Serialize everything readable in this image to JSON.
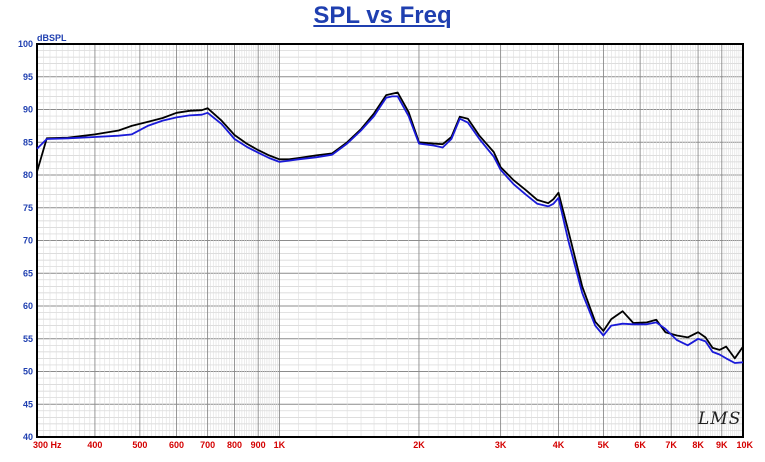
{
  "title": "SPL vs Freq",
  "watermark": "LMS",
  "chart_data": {
    "type": "line",
    "title": "SPL vs Freq",
    "ylabel": "dBSPL",
    "xlabel": "",
    "x_scale": "log",
    "xlim": [
      300,
      10000
    ],
    "ylim": [
      40,
      100
    ],
    "grid": true,
    "y_ticks": [
      100,
      95,
      90,
      85,
      80,
      75,
      70,
      65,
      60,
      55,
      50,
      45,
      40
    ],
    "x_ticks": [
      {
        "value": 300,
        "label": "300 Hz"
      },
      {
        "value": 400,
        "label": "400"
      },
      {
        "value": 500,
        "label": "500"
      },
      {
        "value": 600,
        "label": "600"
      },
      {
        "value": 700,
        "label": "700"
      },
      {
        "value": 800,
        "label": "800"
      },
      {
        "value": 900,
        "label": "900"
      },
      {
        "value": 1000,
        "label": "1K"
      },
      {
        "value": 2000,
        "label": "2K"
      },
      {
        "value": 3000,
        "label": "3K"
      },
      {
        "value": 4000,
        "label": "4K"
      },
      {
        "value": 5000,
        "label": "5K"
      },
      {
        "value": 6000,
        "label": "6K"
      },
      {
        "value": 7000,
        "label": "7K"
      },
      {
        "value": 8000,
        "label": "8K"
      },
      {
        "value": 9000,
        "label": "9K"
      },
      {
        "value": 10000,
        "label": "10K"
      }
    ],
    "series": [
      {
        "color": "#000000",
        "x": [
          300,
          315,
          350,
          400,
          450,
          480,
          520,
          560,
          600,
          640,
          680,
          700,
          750,
          800,
          850,
          900,
          950,
          1000,
          1050,
          1100,
          1200,
          1300,
          1400,
          1500,
          1600,
          1700,
          1750,
          1800,
          1900,
          2000,
          2150,
          2250,
          2350,
          2450,
          2550,
          2700,
          2900,
          3000,
          3200,
          3400,
          3600,
          3800,
          3900,
          4000,
          4200,
          4500,
          4800,
          5000,
          5200,
          5500,
          5800,
          6200,
          6500,
          6800,
          7200,
          7600,
          8000,
          8300,
          8600,
          8900,
          9200,
          9600,
          10000
        ],
        "y": [
          80.5,
          85.6,
          85.7,
          86.2,
          86.8,
          87.5,
          88.1,
          88.7,
          89.5,
          89.8,
          89.9,
          90.2,
          88.3,
          86.1,
          84.8,
          83.8,
          83.0,
          82.4,
          82.4,
          82.6,
          83.0,
          83.3,
          85.0,
          87.0,
          89.4,
          92.2,
          92.4,
          92.6,
          89.6,
          85.0,
          84.8,
          84.7,
          85.8,
          88.9,
          88.6,
          86.0,
          83.5,
          81.2,
          79.2,
          77.7,
          76.2,
          75.7,
          76.3,
          77.3,
          71.5,
          63.0,
          57.6,
          56.2,
          58.0,
          59.2,
          57.4,
          57.5,
          57.9,
          56.0,
          55.5,
          55.2,
          56.0,
          55.2,
          53.6,
          53.3,
          53.8,
          52.0,
          53.8
        ]
      },
      {
        "color": "#1a1ad8",
        "x": [
          300,
          315,
          350,
          400,
          450,
          480,
          520,
          560,
          600,
          640,
          680,
          700,
          750,
          800,
          850,
          900,
          950,
          1000,
          1050,
          1100,
          1200,
          1300,
          1400,
          1500,
          1600,
          1700,
          1750,
          1800,
          1900,
          2000,
          2150,
          2250,
          2350,
          2450,
          2550,
          2700,
          2900,
          3000,
          3200,
          3400,
          3600,
          3800,
          3900,
          4000,
          4200,
          4500,
          4800,
          5000,
          5200,
          5500,
          5800,
          6200,
          6500,
          6800,
          7200,
          7600,
          8000,
          8300,
          8600,
          8900,
          9200,
          9600,
          10000
        ],
        "y": [
          84.0,
          85.5,
          85.6,
          85.8,
          86.0,
          86.2,
          87.5,
          88.3,
          88.8,
          89.1,
          89.2,
          89.5,
          87.8,
          85.5,
          84.3,
          83.4,
          82.6,
          82.0,
          82.2,
          82.4,
          82.7,
          83.1,
          84.8,
          86.8,
          89.0,
          91.8,
          92.0,
          92.0,
          89.0,
          84.8,
          84.5,
          84.2,
          85.5,
          88.6,
          88.0,
          85.5,
          82.8,
          80.8,
          78.6,
          77.0,
          75.6,
          75.2,
          75.6,
          76.5,
          70.0,
          62.0,
          57.0,
          55.5,
          57.0,
          57.3,
          57.2,
          57.2,
          57.5,
          56.5,
          54.8,
          54.0,
          55.0,
          54.6,
          53.0,
          52.6,
          52.0,
          51.3,
          51.4
        ]
      }
    ]
  }
}
